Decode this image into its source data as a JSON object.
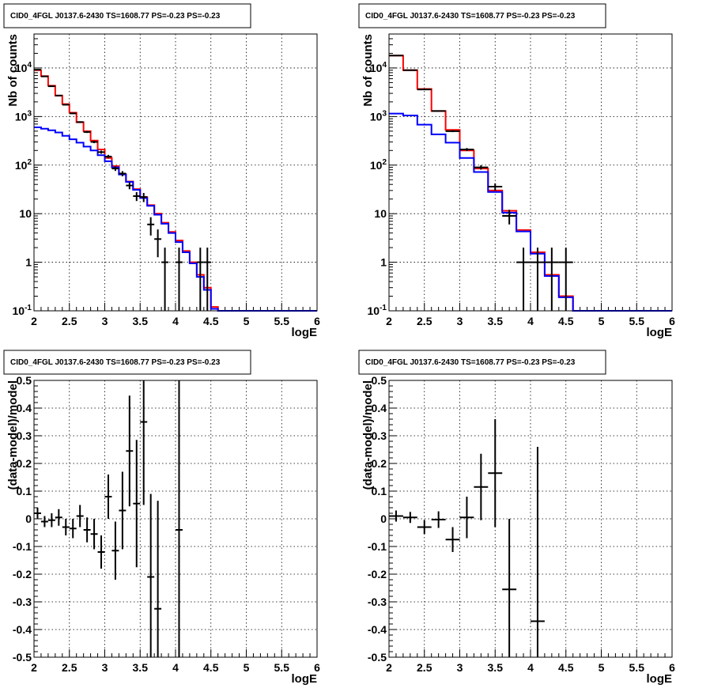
{
  "chart_data": [
    {
      "type": "line",
      "title": "CID0_4FGL J0137.6-2430 TS=1608.77 PS=-0.23 PS=-0.23",
      "xlabel": "logE",
      "ylabel": "Nb of counts",
      "yscale": "log",
      "xlim": [
        2,
        6
      ],
      "ylim": [
        0.1,
        50000
      ],
      "grid": true,
      "x_ticks": [
        "2",
        "2.5",
        "3",
        "3.5",
        "4",
        "4.5",
        "5",
        "5.5",
        "6"
      ],
      "y_ticks": [
        "10^-1",
        "1",
        "10",
        "10^2",
        "10^3",
        "10^4"
      ],
      "bin_edges": [
        2.0,
        2.1,
        2.2,
        2.3,
        2.4,
        2.5,
        2.6,
        2.7,
        2.8,
        2.9,
        3.0,
        3.1,
        3.2,
        3.3,
        3.4,
        3.5,
        3.6,
        3.7,
        3.8,
        3.9,
        4.0,
        4.1,
        4.2,
        4.3,
        4.4,
        4.5,
        4.6,
        4.7,
        4.8,
        4.9,
        5.0,
        5.1,
        5.2,
        5.3,
        5.4,
        5.5,
        5.6,
        5.7,
        5.8,
        5.9,
        6.0
      ],
      "series": [
        {
          "color": "#ff0000",
          "style": "step",
          "values": [
            9000,
            6800,
            4300,
            2700,
            1800,
            1200,
            760,
            500,
            320,
            210,
            140,
            95,
            65,
            46,
            32,
            22,
            15,
            10,
            6.5,
            4.2,
            2.8,
            1.7,
            1.0,
            0.55,
            0.3,
            0.12,
            0.1,
            0.1,
            0.1,
            0.1,
            0.1,
            0.1,
            0.1,
            0.1,
            0.1,
            0.1,
            0.1,
            0.1,
            0.1,
            0.1
          ]
        },
        {
          "color": "#0000ff",
          "style": "step",
          "values": [
            600,
            560,
            520,
            470,
            400,
            340,
            290,
            240,
            200,
            160,
            120,
            90,
            64,
            45,
            31,
            21,
            14.5,
            9.5,
            6.2,
            4.0,
            2.6,
            1.6,
            0.95,
            0.5,
            0.27,
            0.11,
            0.1,
            0.1,
            0.1,
            0.1,
            0.1,
            0.1,
            0.1,
            0.1,
            0.1,
            0.1,
            0.1,
            0.1,
            0.1,
            0.1
          ]
        },
        {
          "color": "#000000",
          "style": "points",
          "points": [
            {
              "x": 2.05,
              "y": 9200
            },
            {
              "x": 2.15,
              "y": 6700
            },
            {
              "x": 2.25,
              "y": 4200
            },
            {
              "x": 2.35,
              "y": 2700
            },
            {
              "x": 2.45,
              "y": 1750
            },
            {
              "x": 2.55,
              "y": 1160
            },
            {
              "x": 2.65,
              "y": 770
            },
            {
              "x": 2.75,
              "y": 480
            },
            {
              "x": 2.85,
              "y": 300
            },
            {
              "x": 2.95,
              "y": 185
            },
            {
              "x": 3.05,
              "y": 150
            },
            {
              "x": 3.15,
              "y": 85
            },
            {
              "x": 3.25,
              "y": 67
            },
            {
              "x": 3.35,
              "y": 38
            },
            {
              "x": 3.45,
              "y": 23
            },
            {
              "x": 3.55,
              "y": 22
            },
            {
              "x": 3.65,
              "y": 6
            },
            {
              "x": 3.75,
              "y": 3
            },
            {
              "x": 3.85,
              "y": 1
            },
            {
              "x": 4.05,
              "y": 1
            },
            {
              "x": 4.35,
              "y": 1
            },
            {
              "x": 4.45,
              "y": 1
            }
          ]
        }
      ]
    },
    {
      "type": "line",
      "title": "CID0_4FGL J0137.6-2430 TS=1608.77 PS=-0.23 PS=-0.23",
      "xlabel": "logE",
      "ylabel": "Nb of counts",
      "yscale": "log",
      "xlim": [
        2,
        6
      ],
      "ylim": [
        0.1,
        50000
      ],
      "grid": true,
      "x_ticks": [
        "2",
        "2.5",
        "3",
        "3.5",
        "4",
        "4.5",
        "5",
        "5.5",
        "6"
      ],
      "y_ticks": [
        "10^-1",
        "1",
        "10",
        "10^2",
        "10^3",
        "10^4"
      ],
      "bin_edges": [
        2.0,
        2.2,
        2.4,
        2.6,
        2.8,
        3.0,
        3.2,
        3.4,
        3.6,
        3.8,
        4.0,
        4.2,
        4.4,
        4.6,
        4.8,
        5.0,
        5.2,
        5.4,
        5.6,
        5.8,
        6.0
      ],
      "series": [
        {
          "color": "#ff0000",
          "style": "step",
          "values": [
            18000,
            9000,
            3700,
            1300,
            530,
            200,
            85,
            30,
            11.5,
            4.6,
            1.6,
            0.55,
            0.2,
            0.1,
            0.1,
            0.1,
            0.1,
            0.1,
            0.1,
            0.1
          ]
        },
        {
          "color": "#0000ff",
          "style": "step",
          "values": [
            1150,
            1050,
            680,
            430,
            290,
            140,
            72,
            28,
            10.5,
            4.3,
            1.5,
            0.52,
            0.19,
            0.1,
            0.1,
            0.1,
            0.1,
            0.1,
            0.1,
            0.1
          ]
        },
        {
          "color": "#000000",
          "style": "points",
          "points": [
            {
              "x": 2.1,
              "y": 18000
            },
            {
              "x": 2.3,
              "y": 9000
            },
            {
              "x": 2.5,
              "y": 3600
            },
            {
              "x": 2.7,
              "y": 1300
            },
            {
              "x": 2.9,
              "y": 500
            },
            {
              "x": 3.1,
              "y": 210
            },
            {
              "x": 3.3,
              "y": 90
            },
            {
              "x": 3.5,
              "y": 36
            },
            {
              "x": 3.7,
              "y": 9
            },
            {
              "x": 3.9,
              "y": 1
            },
            {
              "x": 4.1,
              "y": 1
            },
            {
              "x": 4.3,
              "y": 1
            },
            {
              "x": 4.5,
              "y": 1
            }
          ]
        }
      ]
    },
    {
      "type": "scatter",
      "title": "CID0_4FGL J0137.6-2430 TS=1608.77 PS=-0.23 PS=-0.23",
      "xlabel": "logE",
      "ylabel": "(data-model)/model",
      "xlim": [
        2,
        6
      ],
      "ylim": [
        -0.5,
        0.5
      ],
      "grid": true,
      "x_ticks": [
        "2",
        "2.5",
        "3",
        "3.5",
        "4",
        "4.5",
        "5",
        "5.5",
        "6"
      ],
      "y_ticks": [
        "-0.5",
        "-0.4",
        "-0.3",
        "-0.2",
        "-0.1",
        "0",
        "0.1",
        "0.2",
        "0.3",
        "0.4",
        "0.5"
      ],
      "xerr": 0.05,
      "points": [
        {
          "x": 2.05,
          "y": 0.02,
          "err": 0.02
        },
        {
          "x": 2.15,
          "y": -0.01,
          "err": 0.02
        },
        {
          "x": 2.25,
          "y": -0.005,
          "err": 0.025
        },
        {
          "x": 2.35,
          "y": 0.005,
          "err": 0.03
        },
        {
          "x": 2.45,
          "y": -0.03,
          "err": 0.03
        },
        {
          "x": 2.55,
          "y": -0.035,
          "err": 0.035
        },
        {
          "x": 2.65,
          "y": 0.01,
          "err": 0.04
        },
        {
          "x": 2.75,
          "y": -0.04,
          "err": 0.045
        },
        {
          "x": 2.85,
          "y": -0.055,
          "err": 0.055
        },
        {
          "x": 2.95,
          "y": -0.12,
          "err": 0.06
        },
        {
          "x": 3.05,
          "y": 0.08,
          "err": 0.08
        },
        {
          "x": 3.15,
          "y": -0.115,
          "err": 0.105
        },
        {
          "x": 3.25,
          "y": 0.03,
          "err": 0.14
        },
        {
          "x": 3.35,
          "y": 0.245,
          "err": 0.2
        },
        {
          "x": 3.45,
          "y": 0.055,
          "err": 0.23
        },
        {
          "x": 3.55,
          "y": 0.35,
          "err": 0.3
        },
        {
          "x": 3.65,
          "y": -0.21,
          "err": 0.3
        },
        {
          "x": 3.75,
          "y": -0.325,
          "err": 0.39
        },
        {
          "x": 4.05,
          "y": -0.04,
          "err": 1.0
        }
      ]
    },
    {
      "type": "scatter",
      "title": "CID0_4FGL J0137.6-2430 TS=1608.77 PS=-0.23 PS=-0.23",
      "xlabel": "logE",
      "ylabel": "(data-model)/model",
      "xlim": [
        2,
        6
      ],
      "ylim": [
        -0.5,
        0.5
      ],
      "grid": true,
      "x_ticks": [
        "2",
        "2.5",
        "3",
        "3.5",
        "4",
        "4.5",
        "5",
        "5.5",
        "6"
      ],
      "y_ticks": [
        "-0.5",
        "-0.4",
        "-0.3",
        "-0.2",
        "-0.1",
        "0",
        "0.1",
        "0.2",
        "0.3",
        "0.4",
        "0.5"
      ],
      "xerr": 0.1,
      "points": [
        {
          "x": 2.1,
          "y": 0.01,
          "err": 0.02
        },
        {
          "x": 2.3,
          "y": 0.005,
          "err": 0.02
        },
        {
          "x": 2.5,
          "y": -0.03,
          "err": 0.025
        },
        {
          "x": 2.7,
          "y": -0.003,
          "err": 0.03
        },
        {
          "x": 2.9,
          "y": -0.075,
          "err": 0.045
        },
        {
          "x": 3.1,
          "y": 0.005,
          "err": 0.075
        },
        {
          "x": 3.3,
          "y": 0.115,
          "err": 0.12
        },
        {
          "x": 3.5,
          "y": 0.165,
          "err": 0.195
        },
        {
          "x": 3.7,
          "y": -0.255,
          "err": 0.255
        },
        {
          "x": 4.1,
          "y": -0.37,
          "err": 0.63
        }
      ]
    }
  ]
}
